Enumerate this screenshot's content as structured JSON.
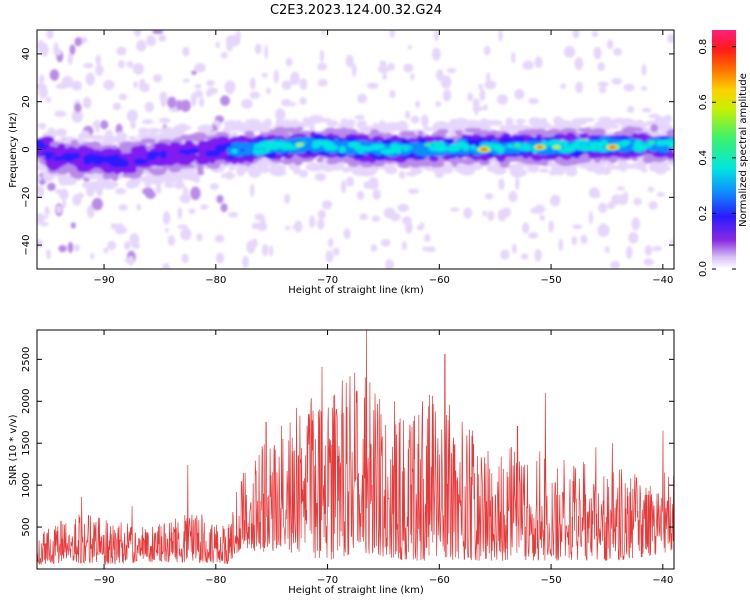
{
  "figure_title": "C2E3.2023.124.00.32.G24",
  "colors": {
    "snr_line": "#e8393a",
    "colormap": [
      "#ffffff",
      "#e6d6fb",
      "#b98be8",
      "#7f1ff0",
      "#2a1bff",
      "#0f8bff",
      "#00e6e0",
      "#3df26a",
      "#c8f000",
      "#ffd000",
      "#ff6a00",
      "#ff1a1a",
      "#ff2080"
    ]
  },
  "chart_data": [
    {
      "type": "heatmap",
      "xlabel": "Height of straight line (km)",
      "ylabel": "Frequency (Hz)",
      "xlim": [
        -96,
        -39
      ],
      "ylim": [
        -50,
        50
      ],
      "x_ticks": [
        -90,
        -80,
        -70,
        -60,
        -50,
        -40
      ],
      "x_tick_labels": [
        "−90",
        "−80",
        "−70",
        "−60",
        "−50",
        "−40"
      ],
      "y_ticks": [
        -40,
        -20,
        0,
        20,
        40
      ],
      "y_tick_labels": [
        "−40",
        "−20",
        "0",
        "20",
        "40"
      ],
      "colorbar": {
        "label": "Normalized spectral amplitude",
        "range": [
          0,
          0.86
        ],
        "ticks": [
          0,
          0.2,
          0.4,
          0.6,
          0.8
        ],
        "tick_labels": [
          "0.0",
          "0.2",
          "0.4",
          "0.6",
          "0.8"
        ]
      },
      "band": {
        "center_frequency_hz": [
          {
            "x": -95,
            "f": -3
          },
          {
            "x": -88,
            "f": -5
          },
          {
            "x": -83,
            "f": -1
          },
          {
            "x": -78,
            "f": 0
          },
          {
            "x": -72,
            "f": 2
          },
          {
            "x": -65,
            "f": 0
          },
          {
            "x": -58,
            "f": 1
          },
          {
            "x": -50,
            "f": 1
          },
          {
            "x": -44,
            "f": 2
          },
          {
            "x": -39,
            "f": 2
          }
        ],
        "peaks": [
          {
            "x": -72.5,
            "f": 2,
            "amplitude": 0.6
          },
          {
            "x": -56,
            "f": 0,
            "amplitude": 0.85
          },
          {
            "x": -51,
            "f": 1,
            "amplitude": 0.8
          },
          {
            "x": -49.5,
            "f": 1,
            "amplitude": 0.65
          },
          {
            "x": -44.5,
            "f": 1,
            "amplitude": 0.85
          },
          {
            "x": -63,
            "f": 0,
            "amplitude": 0.45
          },
          {
            "x": -61,
            "f": 2,
            "amplitude": 0.5
          },
          {
            "x": -53,
            "f": 2,
            "amplitude": 0.5
          },
          {
            "x": -47,
            "f": 2,
            "amplitude": 0.45
          },
          {
            "x": -41,
            "f": 3,
            "amplitude": 0.5
          },
          {
            "x": -67,
            "f": -1,
            "amplitude": 0.45
          },
          {
            "x": -76,
            "f": 0,
            "amplitude": 0.4
          }
        ]
      }
    },
    {
      "type": "line",
      "xlabel": "Height of straight line (km)",
      "ylabel": "SNR (10 * v/v)",
      "xlim": [
        -96,
        -39
      ],
      "ylim": [
        0,
        2850
      ],
      "x_ticks": [
        -90,
        -80,
        -70,
        -60,
        -50,
        -40
      ],
      "x_tick_labels": [
        "−90",
        "−80",
        "−70",
        "−60",
        "−50",
        "−40"
      ],
      "y_ticks": [
        500,
        1000,
        1500,
        2000,
        2500
      ],
      "y_tick_labels": [
        "500",
        "1000",
        "1500",
        "2000",
        "2500"
      ],
      "series": [
        {
          "envelope": [
            {
              "x": -96,
              "low": 50,
              "high": 400
            },
            {
              "x": -93,
              "low": 80,
              "high": 700
            },
            {
              "x": -90,
              "low": 50,
              "high": 600
            },
            {
              "x": -86,
              "low": 80,
              "high": 500
            },
            {
              "x": -82,
              "low": 80,
              "high": 700
            },
            {
              "x": -79,
              "low": 60,
              "high": 500
            },
            {
              "x": -78,
              "low": 200,
              "high": 1100
            },
            {
              "x": -74,
              "low": 200,
              "high": 1800
            },
            {
              "x": -70,
              "low": 100,
              "high": 2200
            },
            {
              "x": -67,
              "low": 200,
              "high": 2400
            },
            {
              "x": -63,
              "low": 100,
              "high": 1800
            },
            {
              "x": -60,
              "low": 100,
              "high": 2200
            },
            {
              "x": -56,
              "low": 100,
              "high": 1400
            },
            {
              "x": -52,
              "low": 100,
              "high": 1500
            },
            {
              "x": -48,
              "low": 100,
              "high": 1300
            },
            {
              "x": -44,
              "low": 100,
              "high": 1200
            },
            {
              "x": -39,
              "low": 200,
              "high": 1200
            }
          ],
          "spikes": [
            {
              "x": -92,
              "y": 860
            },
            {
              "x": -87.5,
              "y": 750
            },
            {
              "x": -82.5,
              "y": 1240
            },
            {
              "x": -75.5,
              "y": 1750
            },
            {
              "x": -74,
              "y": 1550
            },
            {
              "x": -71.5,
              "y": 1960
            },
            {
              "x": -70.5,
              "y": 2410
            },
            {
              "x": -68,
              "y": 2300
            },
            {
              "x": -66.5,
              "y": 2850
            },
            {
              "x": -65.5,
              "y": 1800
            },
            {
              "x": -64,
              "y": 2000
            },
            {
              "x": -61.5,
              "y": 2000
            },
            {
              "x": -59.5,
              "y": 2560
            },
            {
              "x": -57,
              "y": 1650
            },
            {
              "x": -53,
              "y": 1700
            },
            {
              "x": -50.5,
              "y": 2100
            },
            {
              "x": -46,
              "y": 1450
            },
            {
              "x": -44.5,
              "y": 1500
            },
            {
              "x": -40,
              "y": 1650
            },
            {
              "x": -39.5,
              "y": 1100
            }
          ]
        }
      ]
    }
  ]
}
